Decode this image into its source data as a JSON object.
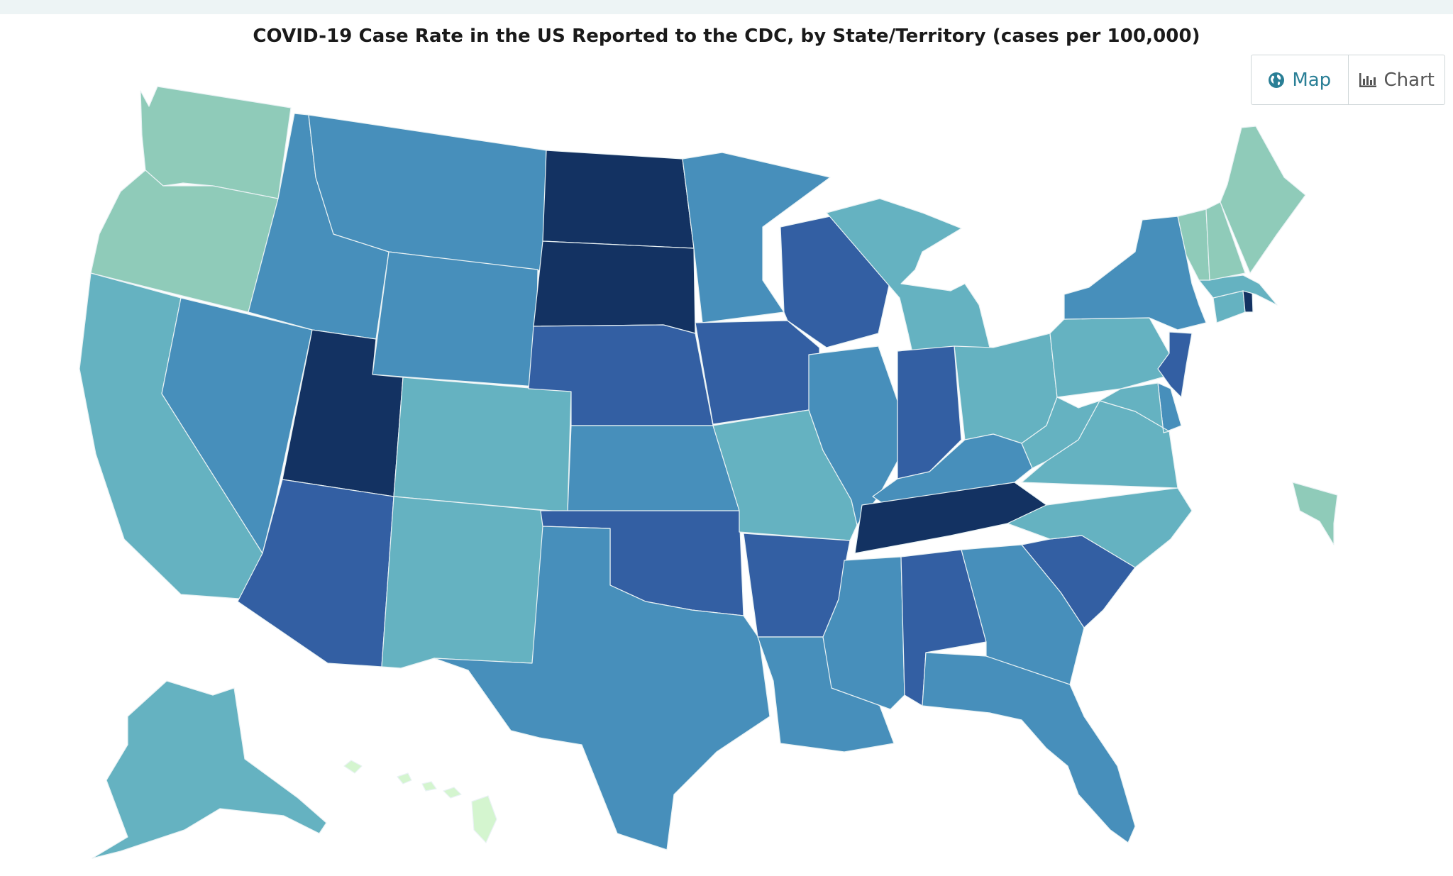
{
  "title": "COVID-19 Case Rate in the US Reported to the CDC, by State/Territory (cases per 100,000)",
  "view_toggle": {
    "map_label": "Map",
    "map_icon": "globe-icon",
    "chart_label": "Chart",
    "chart_icon": "bar-chart-icon",
    "selected": "Map"
  },
  "colors": {
    "lightest": "#d4f5cf",
    "light": "#8fcbb9",
    "mid_light": "#65b2c1",
    "mid": "#478fbb",
    "mid_dark": "#335fa3",
    "darkest": "#133262"
  },
  "states": [
    {
      "code": "WA",
      "level": "light"
    },
    {
      "code": "OR",
      "level": "light"
    },
    {
      "code": "CA",
      "level": "mid_light"
    },
    {
      "code": "NV",
      "level": "mid"
    },
    {
      "code": "ID",
      "level": "mid"
    },
    {
      "code": "MT",
      "level": "mid"
    },
    {
      "code": "WY",
      "level": "mid"
    },
    {
      "code": "UT",
      "level": "darkest"
    },
    {
      "code": "AZ",
      "level": "mid_dark"
    },
    {
      "code": "CO",
      "level": "mid_light"
    },
    {
      "code": "NM",
      "level": "mid_light"
    },
    {
      "code": "ND",
      "level": "darkest"
    },
    {
      "code": "SD",
      "level": "darkest"
    },
    {
      "code": "NE",
      "level": "mid_dark"
    },
    {
      "code": "KS",
      "level": "mid"
    },
    {
      "code": "OK",
      "level": "mid_dark"
    },
    {
      "code": "TX",
      "level": "mid"
    },
    {
      "code": "MN",
      "level": "mid"
    },
    {
      "code": "IA",
      "level": "mid_dark"
    },
    {
      "code": "MO",
      "level": "mid_light"
    },
    {
      "code": "AR",
      "level": "mid_dark"
    },
    {
      "code": "LA",
      "level": "mid"
    },
    {
      "code": "WI",
      "level": "mid_dark"
    },
    {
      "code": "IL",
      "level": "mid"
    },
    {
      "code": "MI",
      "level": "mid_light"
    },
    {
      "code": "IN",
      "level": "mid_dark"
    },
    {
      "code": "OH",
      "level": "mid_light"
    },
    {
      "code": "KY",
      "level": "mid"
    },
    {
      "code": "TN",
      "level": "darkest"
    },
    {
      "code": "MS",
      "level": "mid"
    },
    {
      "code": "AL",
      "level": "mid_dark"
    },
    {
      "code": "GA",
      "level": "mid"
    },
    {
      "code": "FL",
      "level": "mid"
    },
    {
      "code": "SC",
      "level": "mid_dark"
    },
    {
      "code": "NC",
      "level": "mid_light"
    },
    {
      "code": "VA",
      "level": "mid_light"
    },
    {
      "code": "WV",
      "level": "mid_light"
    },
    {
      "code": "PA",
      "level": "mid_light"
    },
    {
      "code": "NY",
      "level": "mid"
    },
    {
      "code": "NJ",
      "level": "mid_dark"
    },
    {
      "code": "DE",
      "level": "mid"
    },
    {
      "code": "MD",
      "level": "mid_light"
    },
    {
      "code": "CT",
      "level": "mid_light"
    },
    {
      "code": "RI",
      "level": "darkest"
    },
    {
      "code": "MA",
      "level": "mid_light"
    },
    {
      "code": "VT",
      "level": "light"
    },
    {
      "code": "NH",
      "level": "light"
    },
    {
      "code": "ME",
      "level": "light"
    },
    {
      "code": "AK",
      "level": "mid_light"
    },
    {
      "code": "HI",
      "level": "lightest"
    },
    {
      "code": "PR",
      "level": "light"
    }
  ]
}
